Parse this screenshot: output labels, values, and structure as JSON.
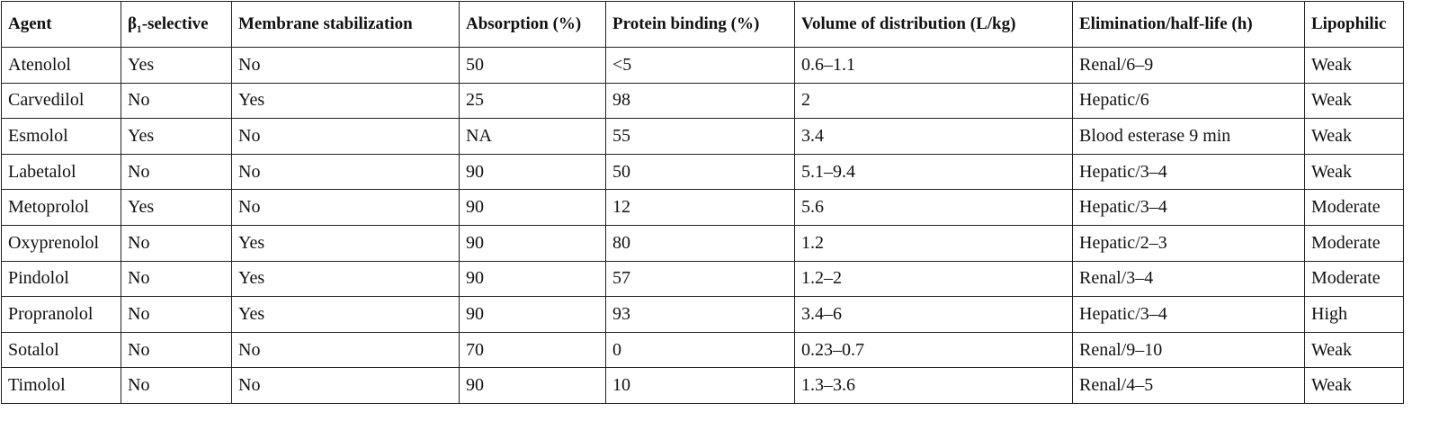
{
  "table": {
    "header": [
      "Agent",
      "β₁-selective",
      "Membrane stabilization",
      "Absorption (%)",
      "Protein binding (%)",
      "Volume of distribution (L/kg)",
      "Elimination/half-life (h)",
      "Lipophilic"
    ],
    "rows": [
      [
        "Atenolol",
        "Yes",
        "No",
        "50",
        "<5",
        "0.6–1.1",
        "Renal/6–9",
        "Weak"
      ],
      [
        "Carvedilol",
        "No",
        "Yes",
        "25",
        "98",
        "2",
        "Hepatic/6",
        "Weak"
      ],
      [
        "Esmolol",
        "Yes",
        "No",
        "NA",
        "55",
        "3.4",
        "Blood esterase 9 min",
        "Weak"
      ],
      [
        "Labetalol",
        "No",
        "No",
        "90",
        "50",
        "5.1–9.4",
        "Hepatic/3–4",
        "Weak"
      ],
      [
        "Metoprolol",
        "Yes",
        "No",
        "90",
        "12",
        "5.6",
        "Hepatic/3–4",
        "Moderate"
      ],
      [
        "Oxyprenolol",
        "No",
        "Yes",
        "90",
        "80",
        "1.2",
        "Hepatic/2–3",
        "Moderate"
      ],
      [
        "Pindolol",
        "No",
        "Yes",
        "90",
        "57",
        "1.2–2",
        "Renal/3–4",
        "Moderate"
      ],
      [
        "Propranolol",
        "No",
        "Yes",
        "90",
        "93",
        "3.4–6",
        "Hepatic/3–4",
        "High"
      ],
      [
        "Sotalol",
        "No",
        "No",
        "70",
        "0",
        "0.23–0.7",
        "Renal/9–10",
        "Weak"
      ],
      [
        "Timolol",
        "No",
        "No",
        "90",
        "10",
        "1.3–3.6",
        "Renal/4–5",
        "Weak"
      ]
    ]
  }
}
